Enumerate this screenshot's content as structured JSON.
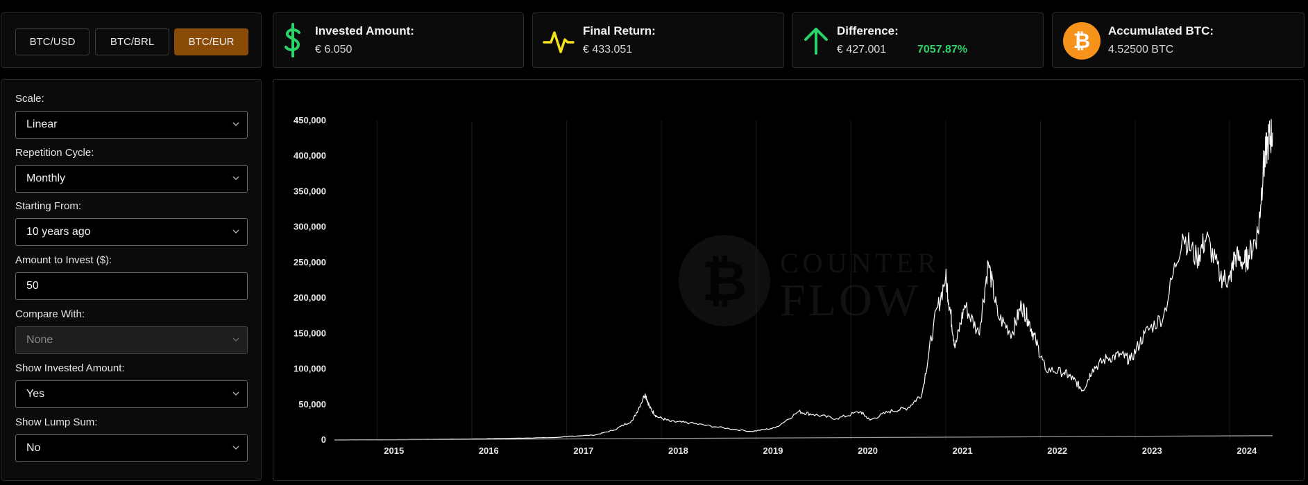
{
  "currency_selector": {
    "options": [
      {
        "label": "BTC/USD",
        "active": false
      },
      {
        "label": "BTC/BRL",
        "active": false
      },
      {
        "label": "BTC/EUR",
        "active": true
      }
    ],
    "active_color": "#8a4b08"
  },
  "stats": {
    "invested": {
      "label": "Invested Amount:",
      "value": "€ 6.050",
      "icon": "dollar-icon",
      "color": "#2bd46a"
    },
    "final_return": {
      "label": "Final Return:",
      "value": "€ 433.051",
      "icon": "pulse-icon",
      "color": "#f5e11b"
    },
    "difference": {
      "label": "Difference:",
      "value": "€ 427.001",
      "percent": "7057.87%",
      "icon": "arrow-up-icon",
      "color": "#2bd46a"
    },
    "accumulated": {
      "label": "Accumulated BTC:",
      "value": "4.52500 BTC",
      "icon": "bitcoin-icon",
      "color": "#f7931a"
    }
  },
  "settings": {
    "scale": {
      "label": "Scale:",
      "value": "Linear"
    },
    "repetition": {
      "label": "Repetition Cycle:",
      "value": "Monthly"
    },
    "starting": {
      "label": "Starting From:",
      "value": "10 years ago"
    },
    "amount": {
      "label": "Amount to Invest ($):",
      "value": "50"
    },
    "compare": {
      "label": "Compare With:",
      "value": "None",
      "disabled": true
    },
    "show_invested": {
      "label": "Show Invested Amount:",
      "value": "Yes"
    },
    "show_lump": {
      "label": "Show Lump Sum:",
      "value": "No"
    }
  },
  "watermark": {
    "line1": "COUNTER",
    "line2": "FLOW"
  },
  "chart_data": {
    "type": "line",
    "title": "",
    "xlabel": "",
    "ylabel": "",
    "x_tick_labels": [
      "2015",
      "2016",
      "2017",
      "2018",
      "2019",
      "2020",
      "2021",
      "2022",
      "2023",
      "2024"
    ],
    "y_tick_labels": [
      "0",
      "50,000",
      "100,000",
      "150,000",
      "200,000",
      "250,000",
      "300,000",
      "350,000",
      "400,000",
      "450,000"
    ],
    "ylim": [
      0,
      450000
    ],
    "xlim": [
      2014.55,
      2024.45
    ],
    "grid": "vertical lines at year boundaries",
    "line_color": "#ffffff",
    "series": [
      {
        "x": [
          2014.55,
          2015.0,
          2015.5,
          2016.0,
          2016.5,
          2016.9,
          2017.0,
          2017.3,
          2017.5,
          2017.7,
          2017.83,
          2017.88,
          2017.95,
          2018.1,
          2018.3,
          2018.6,
          2018.95,
          2019.2,
          2019.45,
          2019.6,
          2019.85,
          2020.1,
          2020.2,
          2020.4,
          2020.6,
          2020.75,
          2020.87,
          2021.0,
          2021.05,
          2021.1,
          2021.2,
          2021.35,
          2021.45,
          2021.55,
          2021.7,
          2021.8,
          2021.87,
          2021.95,
          2022.05,
          2022.25,
          2022.35,
          2022.45,
          2022.55,
          2022.7,
          2022.85,
          2022.95,
          2023.1,
          2023.3,
          2023.5,
          2023.65,
          2023.75,
          2023.9,
          2024.0,
          2024.05,
          2024.15,
          2024.2,
          2024.3,
          2024.35,
          2024.4,
          2024.45
        ],
        "values": [
          0,
          200,
          800,
          1500,
          2500,
          3500,
          5000,
          7000,
          14000,
          28000,
          65000,
          45000,
          33000,
          26000,
          24000,
          18000,
          12000,
          17000,
          40000,
          36000,
          30000,
          40000,
          28000,
          40000,
          45000,
          65000,
          160000,
          230000,
          180000,
          130000,
          190000,
          150000,
          250000,
          175000,
          150000,
          190000,
          170000,
          140000,
          100000,
          95000,
          85000,
          70000,
          100000,
          115000,
          120000,
          112000,
          150000,
          175000,
          290000,
          255000,
          285000,
          230000,
          225000,
          260000,
          250000,
          260000,
          295000,
          380000,
          420000,
          433051
        ]
      },
      {
        "name": "",
        "x": [
          2014.55,
          2024.45
        ],
        "values": [
          0,
          6050
        ]
      }
    ]
  }
}
